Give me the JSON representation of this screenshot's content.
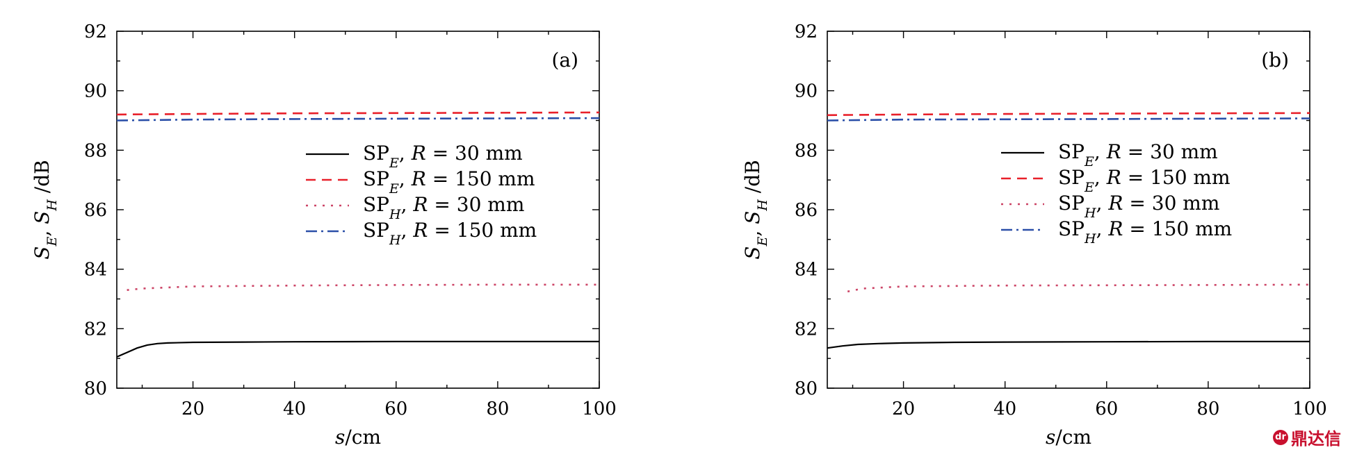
{
  "watermark": {
    "text": "鼎达信",
    "logo_text": "dr"
  },
  "chart_data": [
    {
      "type": "line",
      "panel_label": "(a)",
      "xlabel": "s/cm",
      "ylabel": "S_E, S_H /dB",
      "xlim": [
        5,
        100
      ],
      "ylim": [
        80,
        92
      ],
      "xticks": [
        20,
        40,
        60,
        80,
        100
      ],
      "xtick_labels": [
        "20",
        "40",
        "60",
        "80",
        "100"
      ],
      "yticks": [
        80,
        82,
        84,
        86,
        88,
        90,
        92
      ],
      "ytick_labels": [
        "80",
        "82",
        "84",
        "86",
        "88",
        "90",
        "92"
      ],
      "legend_position": "center-right",
      "series": [
        {
          "name": "SP_E, R = 30 mm",
          "color": "#000000",
          "style": "solid",
          "x": [
            5,
            7,
            9,
            11,
            13,
            15,
            20,
            30,
            40,
            60,
            80,
            100
          ],
          "y": [
            81.05,
            81.2,
            81.35,
            81.45,
            81.5,
            81.52,
            81.54,
            81.55,
            81.56,
            81.57,
            81.57,
            81.57
          ]
        },
        {
          "name": "SP_E, R = 150 mm",
          "color": "#e8202a",
          "style": "dashed",
          "x": [
            5,
            20,
            40,
            60,
            80,
            100
          ],
          "y": [
            89.2,
            89.22,
            89.24,
            89.25,
            89.26,
            89.27
          ]
        },
        {
          "name": "SP_H, R = 30 mm",
          "color": "#cc4466",
          "style": "dotted",
          "x": [
            7,
            10,
            20,
            40,
            60,
            80,
            100
          ],
          "y": [
            83.3,
            83.35,
            83.42,
            83.45,
            83.47,
            83.48,
            83.48
          ]
        },
        {
          "name": "SP_H, R = 150 mm",
          "color": "#2a4fa8",
          "style": "dashdot",
          "x": [
            5,
            20,
            40,
            60,
            80,
            100
          ],
          "y": [
            89.0,
            89.03,
            89.05,
            89.06,
            89.07,
            89.08
          ]
        }
      ]
    },
    {
      "type": "line",
      "panel_label": "(b)",
      "xlabel": "s/cm",
      "ylabel": "S_E, S_H /dB",
      "xlim": [
        5,
        100
      ],
      "ylim": [
        80,
        92
      ],
      "xticks": [
        20,
        40,
        60,
        80,
        100
      ],
      "xtick_labels": [
        "20",
        "40",
        "60",
        "80",
        "100"
      ],
      "yticks": [
        80,
        82,
        84,
        86,
        88,
        90,
        92
      ],
      "ytick_labels": [
        "80",
        "82",
        "84",
        "86",
        "88",
        "90",
        "92"
      ],
      "legend_position": "center-right",
      "series": [
        {
          "name": "SP_E, R = 30 mm",
          "color": "#000000",
          "style": "solid",
          "x": [
            5,
            8,
            11,
            15,
            20,
            30,
            40,
            60,
            80,
            100
          ],
          "y": [
            81.35,
            81.42,
            81.47,
            81.5,
            81.52,
            81.54,
            81.55,
            81.56,
            81.57,
            81.57
          ]
        },
        {
          "name": "SP_E, R = 150 mm",
          "color": "#e8202a",
          "style": "dashed",
          "x": [
            5,
            20,
            40,
            60,
            80,
            100
          ],
          "y": [
            89.18,
            89.2,
            89.22,
            89.23,
            89.24,
            89.25
          ]
        },
        {
          "name": "SP_H, R = 30 mm",
          "color": "#cc4466",
          "style": "dotted",
          "x": [
            9,
            12,
            20,
            40,
            60,
            80,
            100
          ],
          "y": [
            83.25,
            83.35,
            83.42,
            83.45,
            83.46,
            83.47,
            83.48
          ]
        },
        {
          "name": "SP_H, R = 150 mm",
          "color": "#2a4fa8",
          "style": "dashdot",
          "x": [
            5,
            20,
            40,
            60,
            80,
            100
          ],
          "y": [
            89.0,
            89.03,
            89.04,
            89.05,
            89.06,
            89.07
          ]
        }
      ]
    }
  ]
}
